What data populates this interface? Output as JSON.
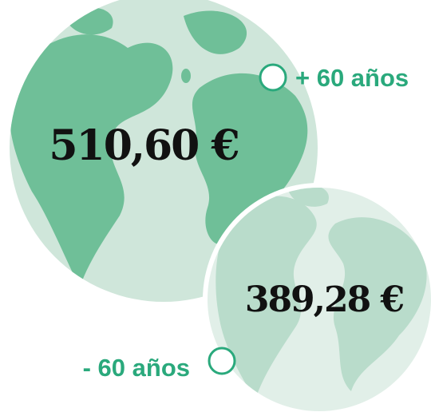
{
  "groups": [
    {
      "label": "+ 60 años",
      "amount": "510,60 €"
    },
    {
      "label": "- 60 años",
      "amount": "389,28 €"
    }
  ]
}
